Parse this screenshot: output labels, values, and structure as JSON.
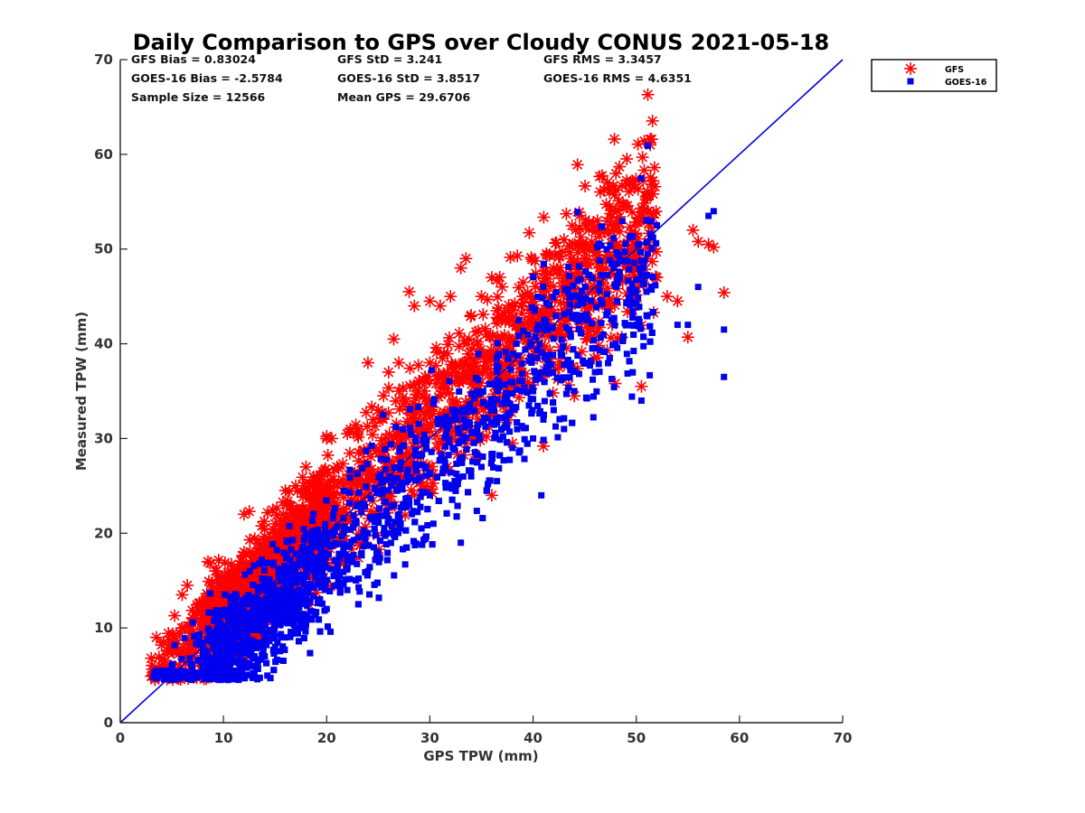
{
  "stats": {
    "gfs_bias": "GFS Bias = 0.83024",
    "gfs_std": "GFS StD = 3.241",
    "gfs_rms": "GFS RMS = 3.3457",
    "goes_bias": "GOES-16 Bias = -2.5784",
    "goes_std": "GOES-16 StD = 3.8517",
    "goes_rms": "GOES-16 RMS = 4.6351",
    "sample_size": "Sample Size = 12566",
    "mean_gps": "Mean GPS = 29.6706"
  },
  "chart_data": {
    "type": "scatter",
    "title": "Daily Comparison to GPS over Cloudy CONUS 2021-05-18",
    "xlabel": "GPS TPW (mm)",
    "ylabel": "Measured TPW (mm)",
    "xlim": [
      0,
      70
    ],
    "ylim": [
      0,
      70
    ],
    "xticks": [
      0,
      10,
      20,
      30,
      40,
      50,
      60,
      70
    ],
    "yticks": [
      0,
      10,
      20,
      30,
      40,
      50,
      60,
      70
    ],
    "grid": false,
    "legend_position": "top-right-outside",
    "reference_line": {
      "x": [
        0,
        70
      ],
      "y": [
        0,
        70
      ],
      "color": "#0000dd"
    },
    "series": [
      {
        "name": "GFS",
        "marker": "asterisk",
        "color": "#ff0000",
        "x": [
          3,
          3.5,
          4,
          5,
          6,
          6.5,
          7,
          8,
          8.5,
          9,
          10,
          11,
          12,
          12.5,
          13,
          14,
          15,
          16,
          17,
          18,
          19,
          20,
          21,
          22,
          23,
          24,
          24.5,
          25,
          26,
          26.5,
          27,
          28,
          28.5,
          29,
          30,
          31,
          32,
          33,
          33.5,
          34,
          35,
          35.5,
          36,
          37,
          38,
          38.5,
          39,
          40,
          41,
          42,
          43,
          44,
          45,
          46,
          47,
          48,
          49,
          50,
          51,
          52,
          53,
          54,
          55,
          55.5,
          56,
          57,
          57.5,
          58.5,
          12,
          20.5,
          27,
          30,
          34,
          38,
          41,
          44,
          50.5,
          36
        ],
        "y": [
          6.8,
          9,
          8.2,
          8,
          13.5,
          14.5,
          9,
          12,
          17,
          12.5,
          15,
          14,
          18,
          22.3,
          17,
          19,
          21,
          24.5,
          25,
          27,
          26,
          30,
          27,
          30.5,
          31,
          38,
          32,
          33,
          37,
          40.5,
          38,
          45.5,
          44,
          36,
          44.5,
          44,
          45,
          48,
          49,
          43,
          45,
          41,
          47,
          46,
          44,
          42,
          45,
          47,
          43,
          48,
          51,
          47,
          49,
          46,
          49,
          50,
          47,
          48.5,
          49,
          47,
          45,
          44.5,
          40.7,
          52,
          50.8,
          50.5,
          50.2,
          45.4,
          22,
          30,
          35,
          38,
          33.5,
          29.5,
          29.2,
          34.5,
          35.5,
          24
        ],
        "cloud": {
          "count": 2300,
          "x_range": [
            3,
            52
          ],
          "slope": 1.03,
          "intercept": 0.8,
          "spread": 3.3
        }
      },
      {
        "name": "GOES-16",
        "marker": "square",
        "color": "#0000ee",
        "x": [
          3.5,
          5,
          7,
          8,
          9,
          10,
          11,
          12,
          13,
          14,
          15,
          16,
          17,
          18,
          20,
          22,
          24,
          25,
          26,
          27,
          28,
          30,
          32,
          34,
          35,
          36,
          38,
          40,
          41,
          42,
          44,
          46,
          48,
          50,
          51,
          52,
          54,
          55,
          56,
          57,
          57.5,
          58.5,
          58.5,
          40.8,
          43,
          45,
          50.5,
          36.5,
          33
        ],
        "y": [
          5.5,
          6,
          5.5,
          5,
          5,
          5,
          5.5,
          6,
          7,
          7,
          8,
          9,
          10,
          11,
          12,
          14,
          16,
          18,
          20,
          22,
          23,
          24,
          25,
          26,
          27,
          28,
          29,
          30,
          32,
          33,
          35,
          37,
          40,
          42,
          43,
          52.5,
          42,
          42,
          46,
          53.5,
          54,
          41.5,
          36.5,
          24,
          31,
          38,
          34,
          25.5,
          19
        ],
        "cloud": {
          "count": 2600,
          "x_range": [
            3,
            52
          ],
          "slope": 0.97,
          "intercept": -2.3,
          "spread": 3.5
        }
      }
    ]
  }
}
